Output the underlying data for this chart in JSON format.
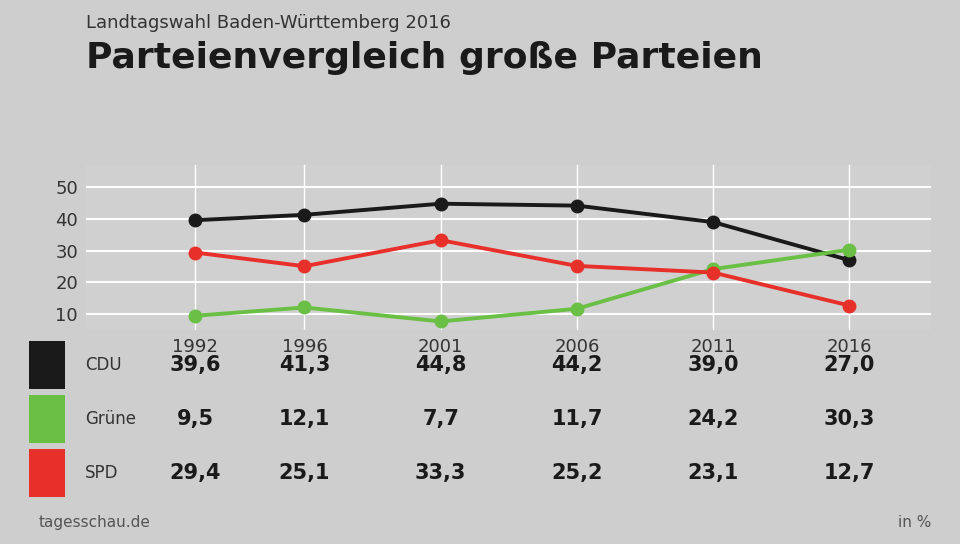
{
  "title_top": "Landtagswahl Baden-Württemberg 2016",
  "title_main": "Parteienvergleich große Parteien",
  "years": [
    1992,
    1996,
    2001,
    2006,
    2011,
    2016
  ],
  "CDU": [
    39.6,
    41.3,
    44.8,
    44.2,
    39.0,
    27.0
  ],
  "Grune": [
    9.5,
    12.1,
    7.7,
    11.7,
    24.2,
    30.3
  ],
  "SPD": [
    29.4,
    25.1,
    33.3,
    25.2,
    23.1,
    12.7
  ],
  "CDU_color": "#1a1a1a",
  "Grune_color": "#6abf45",
  "SPD_color": "#e8302a",
  "bg_color": "#cecece",
  "plot_bg_color": "#d0d0d0",
  "table_bg_color": "#ffffff",
  "grid_color": "#ffffff",
  "yticks": [
    10,
    20,
    30,
    40,
    50
  ],
  "ylim": [
    5,
    57
  ],
  "source": "tagesschau.de",
  "unit": "in %",
  "parties": [
    "CDU",
    "Grüne",
    "SPD"
  ],
  "party_colors": [
    "#1a1a1a",
    "#6abf45",
    "#e8302a"
  ],
  "table_values": {
    "CDU": [
      "39,6",
      "41,3",
      "44,8",
      "44,2",
      "39,0",
      "27,0"
    ],
    "Grüne": [
      "9,5",
      "12,1",
      "7,7",
      "11,7",
      "24,2",
      "30,3"
    ],
    "SPD": [
      "29,4",
      "25,1",
      "33,3",
      "25,2",
      "23,1",
      "12,7"
    ]
  }
}
